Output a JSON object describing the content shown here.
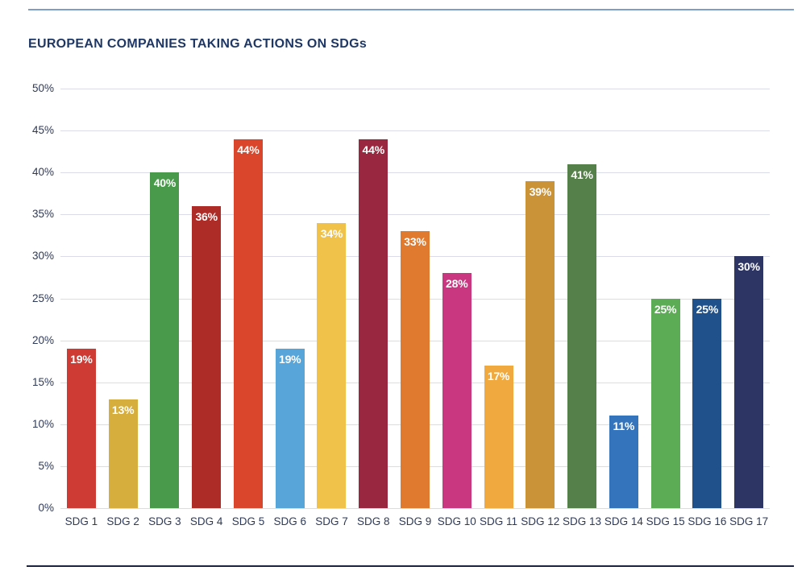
{
  "page": {
    "background": "#ffffff",
    "top_rule_color": "#7e9ec6",
    "bottom_rule_color": "#1b2341"
  },
  "title": {
    "text": "EUROPEAN COMPANIES TAKING ACTIONS ON SDGs",
    "color": "#1e3765"
  },
  "axis": {
    "text_color": "#2e3a59",
    "gridline_color": "#dadde9"
  },
  "chart_data": {
    "type": "bar",
    "title": "EUROPEAN COMPANIES TAKING ACTIONS ON SDGs",
    "categories": [
      "SDG 1",
      "SDG 2",
      "SDG 3",
      "SDG 4",
      "SDG 5",
      "SDG 6",
      "SDG 7",
      "SDG 8",
      "SDG 9",
      "SDG 10",
      "SDG 11",
      "SDG 12",
      "SDG 13",
      "SDG 14",
      "SDG 15",
      "SDG 16",
      "SDG 17"
    ],
    "values": [
      19,
      13,
      40,
      36,
      44,
      19,
      34,
      44,
      33,
      28,
      17,
      39,
      41,
      11,
      25,
      25,
      30
    ],
    "value_labels": [
      "19%",
      "13%",
      "40%",
      "36%",
      "44%",
      "19%",
      "34%",
      "44%",
      "33%",
      "28%",
      "17%",
      "39%",
      "41%",
      "11%",
      "25%",
      "25%",
      "30%"
    ],
    "bar_colors": [
      "#ce3a34",
      "#d5ae3e",
      "#4a9a4c",
      "#ae2c27",
      "#da462b",
      "#57a5d9",
      "#f0c24a",
      "#99273f",
      "#e07a2e",
      "#ca3781",
      "#f0a93e",
      "#ca9338",
      "#56804a",
      "#3474bd",
      "#5cab55",
      "#20518a",
      "#2d3565"
    ],
    "xlabel": "",
    "ylabel": "",
    "ylim": [
      0,
      50
    ],
    "yticks": [
      50,
      45,
      40,
      35,
      30,
      25,
      20,
      15,
      10,
      5,
      0
    ],
    "ytick_suffix": "%",
    "grid": true,
    "legend": false
  }
}
